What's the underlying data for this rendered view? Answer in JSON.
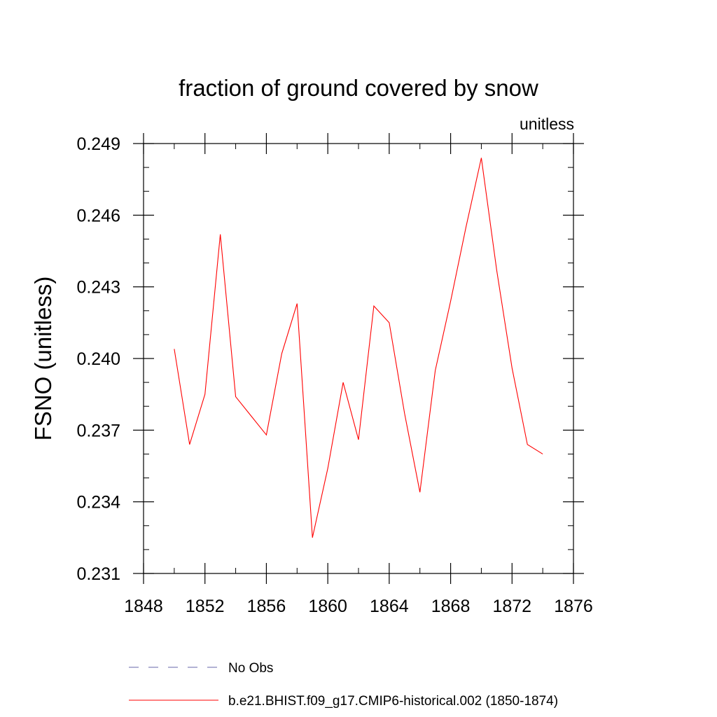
{
  "chart_data": {
    "type": "line",
    "title": "fraction of ground covered by snow",
    "units_label": "unitless",
    "ylabel": "FSNO  (unitless)",
    "xlabel": "",
    "xlim": [
      1848,
      1876
    ],
    "ylim": [
      0.231,
      0.249
    ],
    "x_ticks": [
      1848,
      1852,
      1856,
      1860,
      1864,
      1868,
      1872,
      1876
    ],
    "x_tick_labels": [
      "1848",
      "1852",
      "1856",
      "1860",
      "1864",
      "1868",
      "1872",
      "1876"
    ],
    "x_minor_step": 2,
    "y_ticks": [
      0.231,
      0.234,
      0.237,
      0.24,
      0.243,
      0.246,
      0.249
    ],
    "y_tick_labels": [
      "0.231",
      "0.234",
      "0.237",
      "0.240",
      "0.243",
      "0.246",
      "0.249"
    ],
    "y_minor_step": 0.001,
    "grid": false,
    "legend_position": "bottom",
    "series": [
      {
        "name": "b.e21.BHIST.f09_g17.CMIP6-historical.002 (1850-1874)",
        "color": "#ff0000",
        "style": "solid",
        "x": [
          1850,
          1851,
          1852,
          1853,
          1854,
          1855,
          1856,
          1857,
          1858,
          1859,
          1860,
          1861,
          1862,
          1863,
          1864,
          1865,
          1866,
          1867,
          1868,
          1869,
          1870,
          1871,
          1872,
          1873,
          1874
        ],
        "values": [
          0.2404,
          0.2364,
          0.2385,
          0.2452,
          0.2384,
          0.2376,
          0.2368,
          0.2402,
          0.2423,
          0.2325,
          0.2354,
          0.239,
          0.2366,
          0.2422,
          0.2415,
          0.2377,
          0.2344,
          0.2395,
          0.2424,
          0.2455,
          0.2484,
          0.2437,
          0.2396,
          0.2364,
          0.236
        ]
      }
    ],
    "legend": [
      {
        "label": "No Obs",
        "color": "#6666aa",
        "style": "dashed"
      },
      {
        "label": "b.e21.BHIST.f09_g17.CMIP6-historical.002 (1850-1874)",
        "color": "#ff0000",
        "style": "solid"
      }
    ]
  }
}
